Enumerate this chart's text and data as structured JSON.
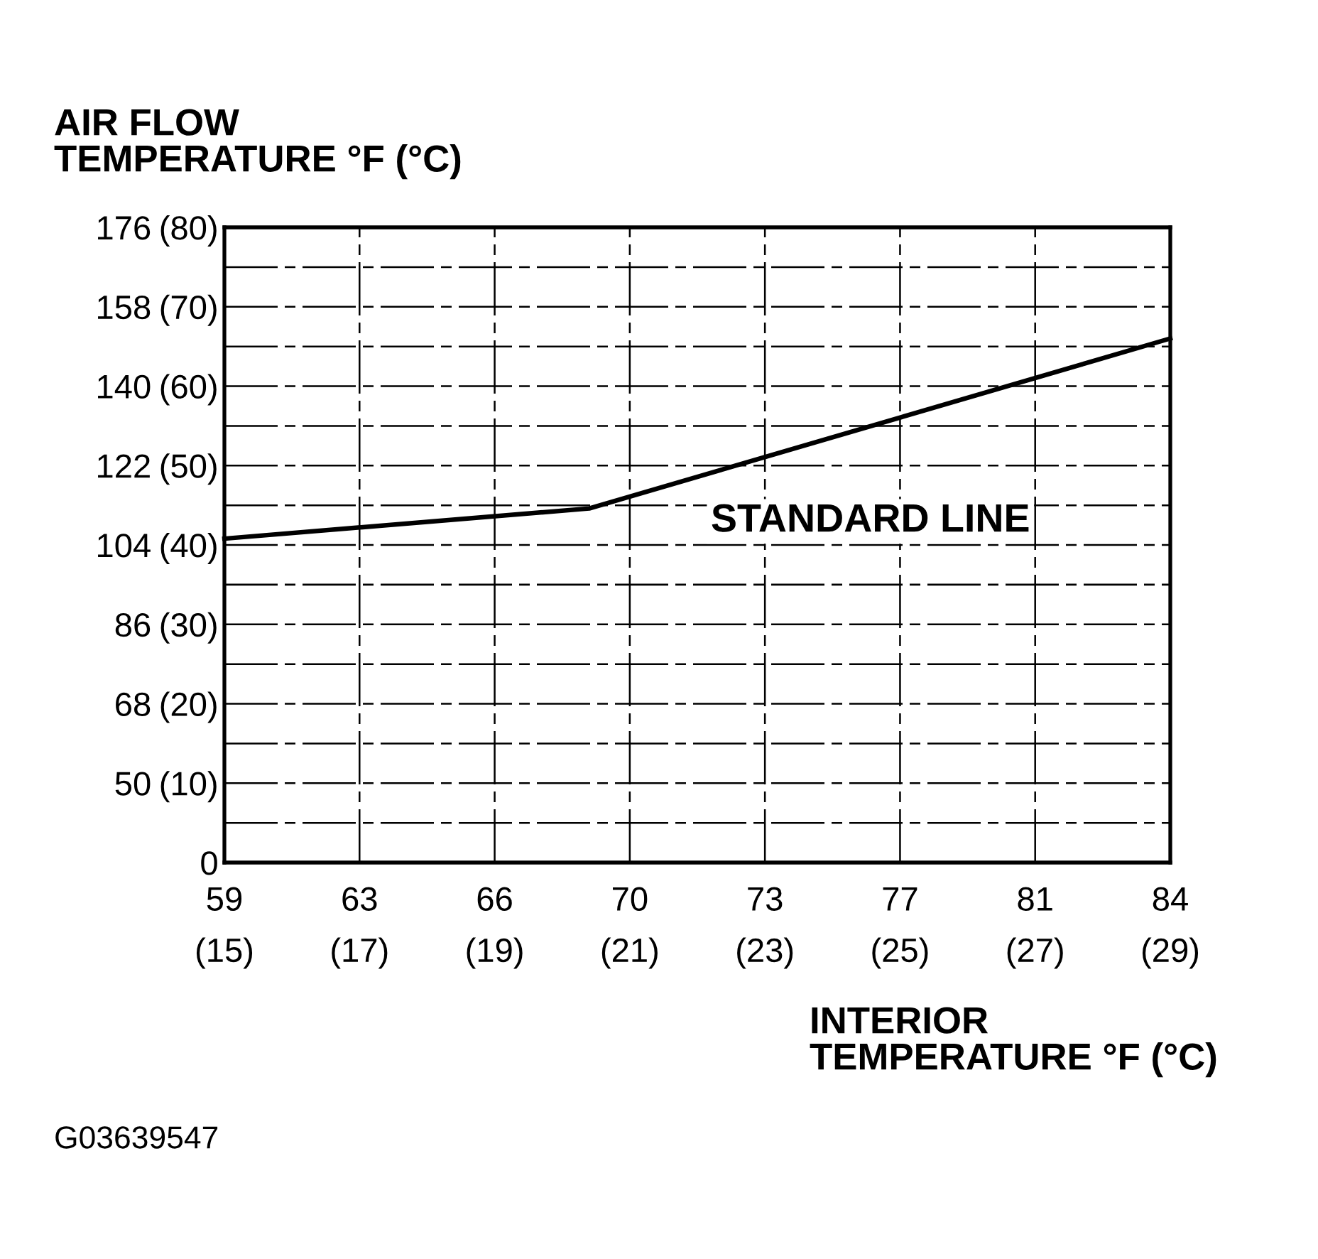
{
  "chart_data": {
    "type": "line",
    "ylabel": "AIR FLOW\nTEMPERATURE °F (°C)",
    "xlabel": "INTERIOR\nTEMPERATURE °F (°C)",
    "annotations": [
      "G03639547"
    ],
    "series": [
      {
        "name": "STANDARD LINE",
        "color": "#000000",
        "x": [
          15,
          20.4,
          29
        ],
        "values": [
          40.8,
          44.6,
          66.0
        ]
      }
    ],
    "xlim": [
      15,
      29
    ],
    "xticks": [
      {
        "value": 15,
        "label": "(15)"
      },
      {
        "value": 17,
        "label": "(17)"
      },
      {
        "value": 19,
        "label": "(19)"
      },
      {
        "value": 21,
        "label": "(21)"
      },
      {
        "value": 23,
        "label": "(23)"
      },
      {
        "value": 25,
        "label": "(25)"
      },
      {
        "value": 27,
        "label": "(27)"
      },
      {
        "value": 29,
        "label": "(29)"
      }
    ],
    "x2lim": [
      59,
      84.2
    ],
    "x2ticks": [
      59,
      {
        "value": 62.6,
        "label": "63"
      },
      {
        "value": 66.2,
        "label": "66"
      },
      {
        "value": 69.8,
        "label": "70"
      },
      {
        "value": 73.4,
        "label": "73"
      },
      77,
      {
        "value": 80.6,
        "label": "81"
      },
      {
        "value": 84.2,
        "label": "84"
      }
    ],
    "ylim": [
      0,
      80
    ],
    "yticks": [
      0,
      {
        "value": 5,
        "label": null
      },
      {
        "value": 10,
        "label": "(10)"
      },
      {
        "value": 15,
        "label": null
      },
      {
        "value": 20,
        "label": "(20)"
      },
      {
        "value": 25,
        "label": null
      },
      {
        "value": 30,
        "label": "(30)"
      },
      {
        "value": 35,
        "label": null
      },
      {
        "value": 40,
        "label": "(40)"
      },
      {
        "value": 45,
        "label": null
      },
      {
        "value": 50,
        "label": "(50)"
      },
      {
        "value": 55,
        "label": null
      },
      {
        "value": 60,
        "label": "(60)"
      },
      {
        "value": 65,
        "label": null
      },
      {
        "value": 70,
        "label": "(70)"
      },
      {
        "value": 75,
        "label": null
      },
      {
        "value": 80,
        "label": "(80)"
      }
    ],
    "y2lim": [
      32,
      176
    ],
    "y2ticks": [
      50,
      68,
      86,
      104,
      122,
      140,
      158,
      176
    ],
    "grid": true,
    "marker": "none",
    "line_style": "solid"
  }
}
